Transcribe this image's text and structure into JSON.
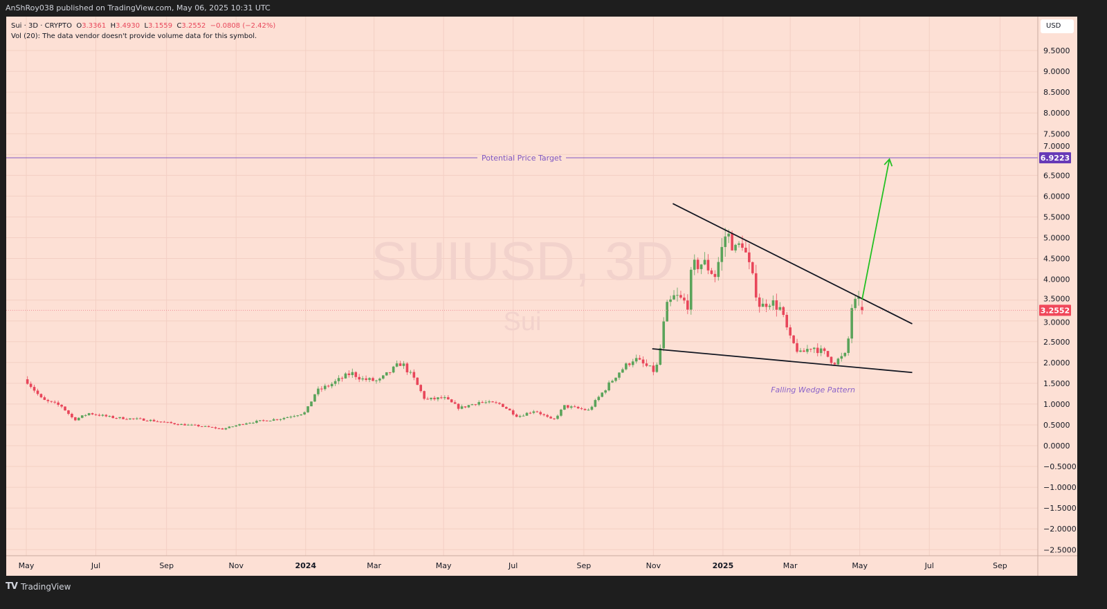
{
  "header": {
    "published": "AnShRoy038 published on TradingView.com, May 06, 2025 10:31 UTC"
  },
  "legend": {
    "symbol": "Sui · 3D · CRYPTO",
    "open_label": "O",
    "open": "3.3361",
    "high_label": "H",
    "high": "3.4930",
    "low_label": "L",
    "low": "3.1559",
    "close_label": "C",
    "close": "3.2552",
    "change": "−0.0808 (−2.42%)",
    "volume": "Vol (20): The data vendor doesn't provide volume data for this symbol."
  },
  "currency": "USD",
  "footer": {
    "brand": "TradingView"
  },
  "colors": {
    "background": "#fde0d5",
    "up": "#5aa35a",
    "down": "#e8465a",
    "target": "#7e57c2",
    "target_badge": "#673ab7",
    "price_badge": "#f0475a",
    "arrow": "#22c022",
    "trendline": "#131722"
  },
  "chart_data": {
    "type": "candlestick",
    "title": "SUIUSD, 3D",
    "subtitle": "Sui",
    "interval_days": 3,
    "start_date": "2023-05-02",
    "end_date": "2025-05-05",
    "ylim": [
      -2.65,
      10.1
    ],
    "y_ticks": [
      "9.5000",
      "9.0000",
      "8.5000",
      "8.0000",
      "7.5000",
      "7.0000",
      "6.5000",
      "6.0000",
      "5.5000",
      "5.0000",
      "4.5000",
      "4.0000",
      "3.5000",
      "3.0000",
      "2.5000",
      "2.0000",
      "1.5000",
      "1.0000",
      "0.5000",
      "0.0000",
      "−0.5000",
      "−1.0000",
      "−1.5000",
      "−2.0000",
      "−2.5000"
    ],
    "x_ticks": [
      {
        "date": "2023-05-01",
        "label": "May"
      },
      {
        "date": "2023-07-01",
        "label": "Jul"
      },
      {
        "date": "2023-09-01",
        "label": "Sep"
      },
      {
        "date": "2023-11-01",
        "label": "Nov"
      },
      {
        "date": "2024-01-01",
        "label": "2024",
        "bold": true
      },
      {
        "date": "2024-03-01",
        "label": "Mar"
      },
      {
        "date": "2024-05-01",
        "label": "May"
      },
      {
        "date": "2024-07-01",
        "label": "Jul"
      },
      {
        "date": "2024-09-01",
        "label": "Sep"
      },
      {
        "date": "2024-11-01",
        "label": "Nov"
      },
      {
        "date": "2025-01-01",
        "label": "2025",
        "bold": true
      },
      {
        "date": "2025-03-01",
        "label": "Mar"
      },
      {
        "date": "2025-05-01",
        "label": "May"
      },
      {
        "date": "2025-07-01",
        "label": "Jul"
      },
      {
        "date": "2025-09-01",
        "label": "Sep"
      }
    ],
    "close_path": [
      [
        "2023-05-02",
        1.55
      ],
      [
        "2023-05-15",
        1.1
      ],
      [
        "2023-06-01",
        0.95
      ],
      [
        "2023-06-12",
        0.62
      ],
      [
        "2023-06-25",
        0.78
      ],
      [
        "2023-07-15",
        0.68
      ],
      [
        "2023-08-15",
        0.62
      ],
      [
        "2023-09-10",
        0.52
      ],
      [
        "2023-10-01",
        0.47
      ],
      [
        "2023-10-20",
        0.4
      ],
      [
        "2023-11-10",
        0.55
      ],
      [
        "2023-12-10",
        0.65
      ],
      [
        "2024-01-01",
        0.8
      ],
      [
        "2024-01-10",
        1.3
      ],
      [
        "2024-01-25",
        1.5
      ],
      [
        "2024-02-10",
        1.75
      ],
      [
        "2024-02-20",
        1.6
      ],
      [
        "2024-03-05",
        1.55
      ],
      [
        "2024-03-25",
        2.0
      ],
      [
        "2024-04-05",
        1.6
      ],
      [
        "2024-04-15",
        1.1
      ],
      [
        "2024-05-01",
        1.15
      ],
      [
        "2024-05-15",
        0.9
      ],
      [
        "2024-06-01",
        1.05
      ],
      [
        "2024-06-20",
        1.0
      ],
      [
        "2024-07-05",
        0.7
      ],
      [
        "2024-07-20",
        0.85
      ],
      [
        "2024-08-05",
        0.6
      ],
      [
        "2024-08-15",
        0.95
      ],
      [
        "2024-09-05",
        0.85
      ],
      [
        "2024-09-15",
        1.2
      ],
      [
        "2024-10-01",
        1.75
      ],
      [
        "2024-10-15",
        2.1
      ],
      [
        "2024-11-01",
        1.8
      ],
      [
        "2024-11-05",
        1.95
      ],
      [
        "2024-11-12",
        3.3
      ],
      [
        "2024-11-20",
        3.6
      ],
      [
        "2024-12-01",
        3.4
      ],
      [
        "2024-12-05",
        4.3
      ],
      [
        "2024-12-15",
        4.4
      ],
      [
        "2024-12-25",
        4.1
      ],
      [
        "2025-01-04",
        5.15
      ],
      [
        "2025-01-12",
        4.7
      ],
      [
        "2025-01-18",
        4.9
      ],
      [
        "2025-01-25",
        4.2
      ],
      [
        "2025-02-03",
        3.3
      ],
      [
        "2025-02-10",
        3.5
      ],
      [
        "2025-02-20",
        3.3
      ],
      [
        "2025-03-01",
        2.55
      ],
      [
        "2025-03-10",
        2.2
      ],
      [
        "2025-03-20",
        2.4
      ],
      [
        "2025-04-01",
        2.2
      ],
      [
        "2025-04-08",
        2.0
      ],
      [
        "2025-04-20",
        2.2
      ],
      [
        "2025-04-23",
        3.3
      ],
      [
        "2025-04-29",
        3.5
      ],
      [
        "2025-05-05",
        3.2552
      ]
    ],
    "last_price": 3.2552,
    "last_price_label": "3.2552",
    "annotations": {
      "target_line": {
        "price": 6.9223,
        "label": "Potential Price Target",
        "badge": "6.9223"
      },
      "upper_trendline": [
        [
          "2024-11-18",
          5.82
        ],
        [
          "2025-06-16",
          2.93
        ]
      ],
      "lower_trendline": [
        [
          "2024-10-31",
          2.33
        ],
        [
          "2025-06-16",
          1.76
        ]
      ],
      "arrow": [
        [
          "2025-05-03",
          3.51
        ],
        [
          "2025-05-27",
          6.89
        ]
      ],
      "pattern_label": {
        "text": "Falling Wedge Pattern",
        "date": "2025-03-21",
        "price": 1.35
      }
    }
  }
}
